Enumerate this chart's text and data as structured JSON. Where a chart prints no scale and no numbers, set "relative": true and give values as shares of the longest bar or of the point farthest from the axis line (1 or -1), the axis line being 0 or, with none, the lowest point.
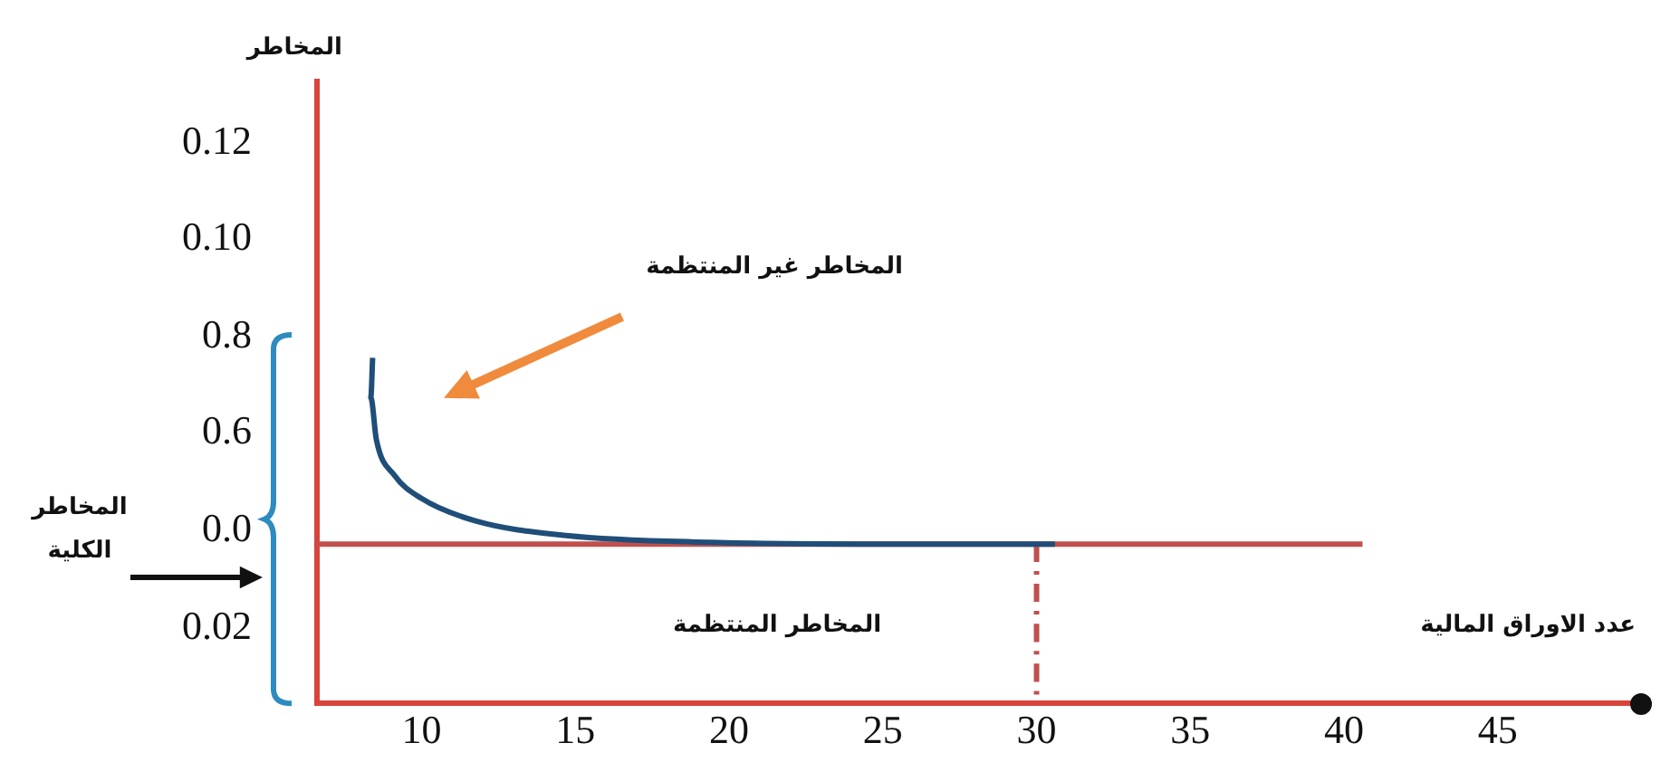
{
  "chart_data": {
    "type": "line",
    "xlabel": "عدد الاوراق المالية",
    "annotations": [
      "المخاطر غير المنتظمة",
      "المخاطر المنتظمة",
      "المخاطر الكلية",
      "0.02",
      "0.0",
      "0.6",
      "0.8",
      "0.10",
      "0.12",
      "المخاطر"
    ],
    "relative": true,
    "series": [
      {
        "color": "#1f4e79",
        "x": [
          8.41,
          8.35,
          8.53,
          9.12,
          10,
          11.76,
          14.7,
          19.4,
          25.3,
          30.6
        ],
        "values": [
          1.0,
          0.885,
          0.764,
          0.66,
          0.593,
          0.528,
          0.486,
          0.466,
          0.461,
          0.461
        ]
      },
      {
        "color": "#c0504d",
        "x": [
          6.6,
          40.6
        ],
        "values": [
          0.461,
          0.461
        ]
      },
      {
        "color": "#c0504d",
        "x": [
          30,
          30
        ],
        "values": [
          0.461,
          0
        ],
        "line_style": "dashed"
      }
    ],
    "xlim": [
      6.6,
      49.6
    ],
    "xticks": [
      10,
      15,
      20,
      25,
      30,
      35,
      40,
      45
    ],
    "grid": false,
    "legend": false,
    "marker": "none"
  }
}
